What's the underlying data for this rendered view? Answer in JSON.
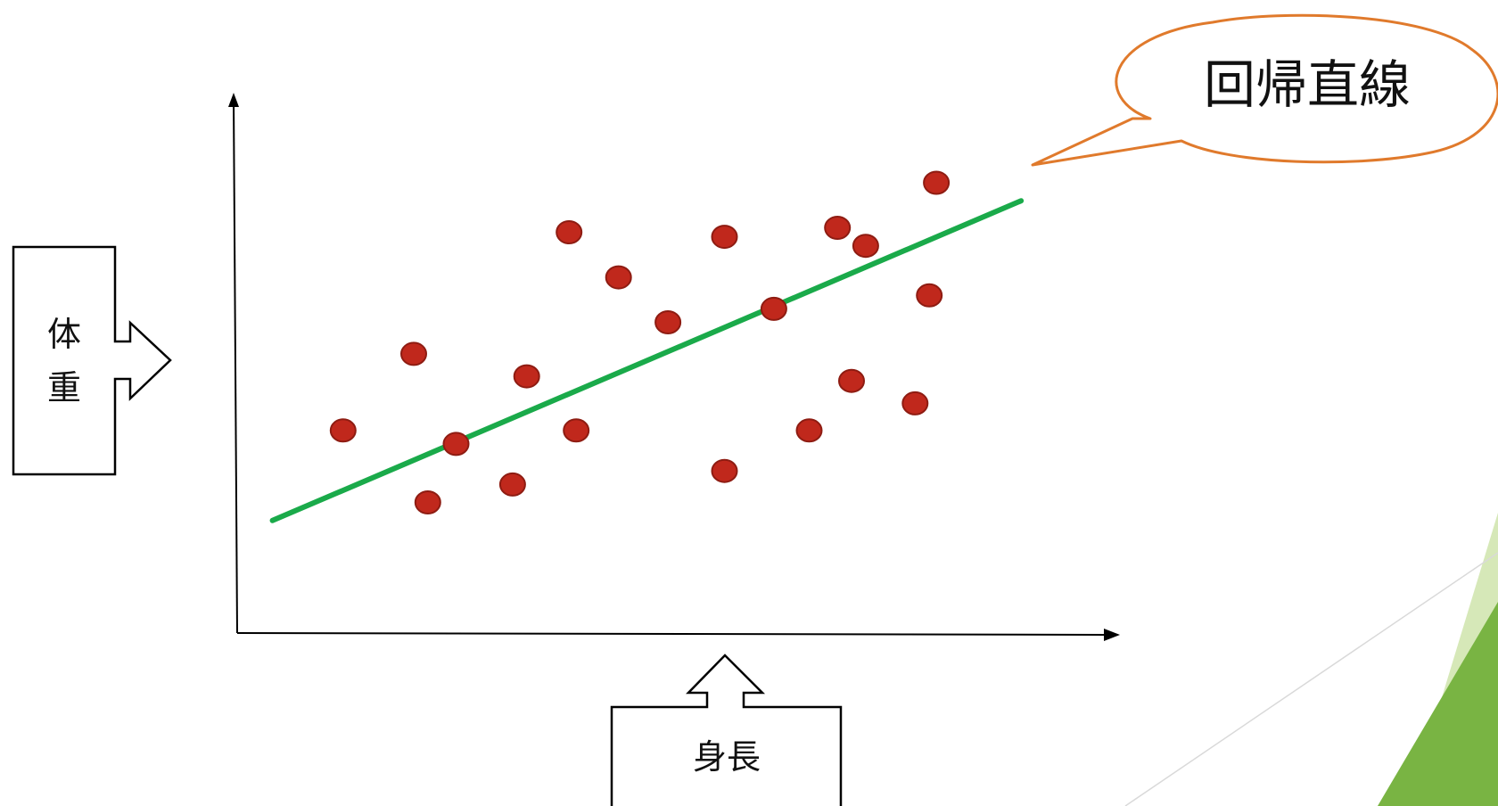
{
  "chart_data": {
    "type": "scatter",
    "points": [
      {
        "x": 1,
        "y": 2.5
      },
      {
        "x": 2,
        "y": 4.2
      },
      {
        "x": 2.2,
        "y": 0.9
      },
      {
        "x": 2.6,
        "y": 2.2
      },
      {
        "x": 3.4,
        "y": 1.3
      },
      {
        "x": 3.6,
        "y": 3.7
      },
      {
        "x": 4.2,
        "y": 6.9
      },
      {
        "x": 4.3,
        "y": 2.5
      },
      {
        "x": 4.9,
        "y": 5.9
      },
      {
        "x": 5.6,
        "y": 4.9
      },
      {
        "x": 6.4,
        "y": 6.8
      },
      {
        "x": 6.4,
        "y": 1.6
      },
      {
        "x": 7.1,
        "y": 5.2
      },
      {
        "x": 7.6,
        "y": 2.5
      },
      {
        "x": 8.0,
        "y": 7.0
      },
      {
        "x": 8.2,
        "y": 3.6
      },
      {
        "x": 8.4,
        "y": 6.6
      },
      {
        "x": 9.1,
        "y": 3.1
      },
      {
        "x": 9.3,
        "y": 5.5
      },
      {
        "x": 9.4,
        "y": 8.0
      }
    ],
    "regression_line": {
      "x": [
        0,
        10.6
      ],
      "y": [
        0.5,
        7.6
      ]
    },
    "xlim": [
      -0.5,
      12
    ],
    "ylim": [
      -2,
      10
    ],
    "colors": {
      "points": "#c0281c",
      "points_edge": "#8e1c12",
      "regression_line": "#1aaa4a",
      "callout_border": "#e07a2c",
      "axis": "#000000"
    }
  },
  "labels": {
    "y_axis": "体重",
    "x_axis": "身長",
    "callout": "回帰直線"
  },
  "decoration": {
    "corner_colors": [
      "#79b443",
      "#d6e8b8"
    ]
  }
}
